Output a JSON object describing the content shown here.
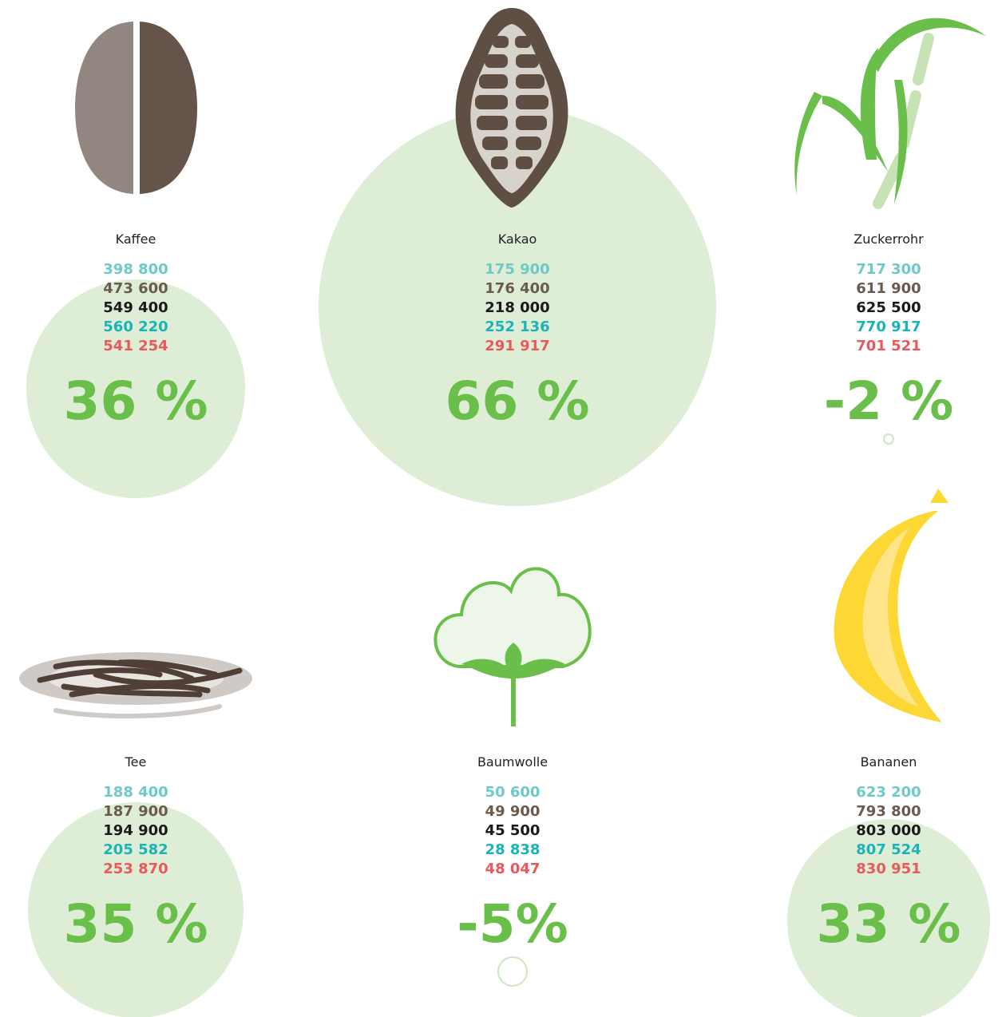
{
  "items": [
    {
      "label": "Kaffee",
      "numbers": [
        "398 800",
        "473 600",
        "549 400",
        "560 220",
        "541 254"
      ],
      "change": "36 %"
    },
    {
      "label": "Kakao",
      "numbers": [
        "175 900",
        "176 400",
        "218 000",
        "252 136",
        "291 917"
      ],
      "change": "66 %"
    },
    {
      "label": "Zuckerrohr",
      "numbers": [
        "717 300",
        "611 900",
        "625 500",
        "770 917",
        "701 521"
      ],
      "change": "-2 %"
    },
    {
      "label": "Tee",
      "numbers": [
        "188 400",
        "187 900",
        "194 900",
        "205 582",
        "253 870"
      ],
      "change": "35 %"
    },
    {
      "label": "Baumwolle",
      "numbers": [
        "50 600",
        "49 900",
        "45 500",
        "28 838",
        "48 047"
      ],
      "change": "-5%"
    },
    {
      "label": "Bananen",
      "numbers": [
        "623 200",
        "793 800",
        "803 000",
        "807 524",
        "830 951"
      ],
      "change": "33 %"
    }
  ]
}
